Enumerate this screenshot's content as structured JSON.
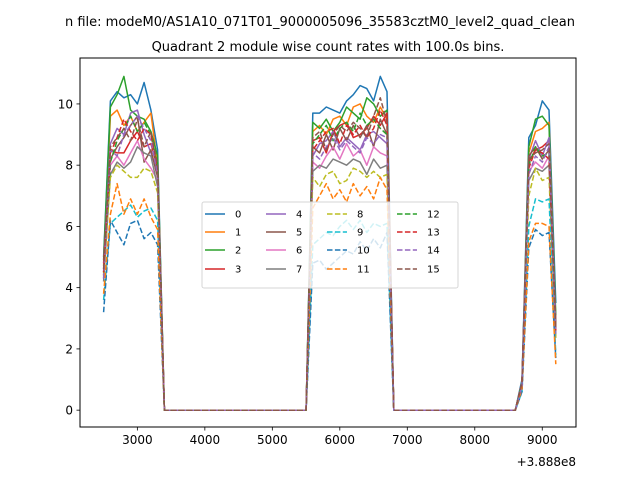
{
  "chart_data": {
    "type": "line",
    "suptitle": "n file: modeM0/AS1A10_071T01_9000005096_35583cztM0_level2_quad_clean",
    "title": "Quadrant 2 module wise count rates with 100.0s bins.",
    "xlabel": "",
    "ylabel": "",
    "x_offset_label": "+3.888e8",
    "xlim": [
      2150,
      9500
    ],
    "ylim": [
      -0.55,
      11.5
    ],
    "x_ticks": [
      3000,
      4000,
      5000,
      6000,
      7000,
      8000,
      9000
    ],
    "y_ticks": [
      0,
      2,
      4,
      6,
      8,
      10
    ],
    "grid": false,
    "legend_position": "center",
    "x": [
      2500,
      2600,
      2700,
      2800,
      2900,
      3000,
      3100,
      3200,
      3300,
      3400,
      5500,
      5600,
      5700,
      5800,
      5900,
      6000,
      6100,
      6200,
      6300,
      6400,
      6500,
      6600,
      6700,
      6800,
      8600,
      8700,
      8800,
      8900,
      9000,
      9100,
      9200
    ],
    "series": [
      {
        "name": "0",
        "color": "#1f77b4",
        "dash": "solid",
        "values": [
          5.0,
          10.1,
          10.4,
          10.2,
          10.3,
          10.0,
          10.7,
          9.8,
          8.5,
          0,
          0,
          9.7,
          9.7,
          9.9,
          9.8,
          9.7,
          10.1,
          10.3,
          10.6,
          10.5,
          10.1,
          10.9,
          10.4,
          0,
          0,
          1.0,
          8.9,
          9.3,
          10.1,
          9.8,
          3.5
        ]
      },
      {
        "name": "1",
        "color": "#ff7f0e",
        "dash": "solid",
        "values": [
          4.7,
          9.6,
          9.8,
          9.3,
          9.6,
          9.1,
          9.4,
          9.7,
          8.0,
          0,
          0,
          9.1,
          9.3,
          9.0,
          9.5,
          9.6,
          9.3,
          9.9,
          10.0,
          9.6,
          9.4,
          9.9,
          9.5,
          0,
          0,
          0.9,
          8.4,
          9.1,
          9.2,
          9.4,
          2.9
        ]
      },
      {
        "name": "2",
        "color": "#2ca02c",
        "dash": "solid",
        "values": [
          4.9,
          9.9,
          10.3,
          10.9,
          9.8,
          9.6,
          9.5,
          9.1,
          8.3,
          0,
          0,
          9.4,
          9.2,
          9.5,
          9.1,
          9.4,
          9.9,
          9.7,
          9.5,
          10.2,
          10.0,
          9.6,
          9.8,
          0,
          0,
          0.9,
          8.6,
          9.5,
          9.6,
          9.3,
          3.1
        ]
      },
      {
        "name": "3",
        "color": "#d62728",
        "dash": "solid",
        "values": [
          4.8,
          8.5,
          8.4,
          8.4,
          8.8,
          9.1,
          8.6,
          8.7,
          7.9,
          0,
          0,
          8.8,
          8.9,
          8.4,
          9.1,
          9.3,
          9.4,
          8.9,
          9.0,
          9.2,
          9.6,
          9.3,
          9.7,
          0,
          0,
          0.9,
          8.1,
          8.5,
          8.6,
          8.8,
          2.7
        ]
      },
      {
        "name": "4",
        "color": "#9467bd",
        "dash": "solid",
        "values": [
          4.6,
          8.7,
          9.2,
          9.0,
          9.7,
          9.8,
          9.0,
          8.4,
          7.8,
          0,
          0,
          8.3,
          8.7,
          8.8,
          9.1,
          8.6,
          8.9,
          8.7,
          8.5,
          9.0,
          9.1,
          8.9,
          8.7,
          0,
          0,
          0.9,
          8.2,
          8.8,
          8.3,
          8.9,
          2.8
        ]
      },
      {
        "name": "5",
        "color": "#8c564b",
        "dash": "solid",
        "values": [
          4.4,
          8.2,
          8.6,
          8.9,
          9.3,
          9.6,
          8.1,
          8.5,
          7.6,
          0,
          0,
          8.6,
          8.4,
          9.0,
          8.5,
          9.2,
          8.8,
          9.3,
          8.9,
          9.3,
          8.6,
          9.5,
          9.0,
          0,
          0,
          0.8,
          8.3,
          8.6,
          8.2,
          8.5,
          2.6
        ]
      },
      {
        "name": "6",
        "color": "#e377c2",
        "dash": "solid",
        "values": [
          4.3,
          8.0,
          8.3,
          8.0,
          8.4,
          8.8,
          8.2,
          7.9,
          7.5,
          0,
          0,
          8.1,
          7.9,
          8.3,
          8.6,
          8.2,
          8.7,
          8.3,
          8.5,
          8.0,
          8.6,
          8.4,
          8.3,
          0,
          0,
          0.8,
          7.8,
          8.1,
          7.9,
          8.3,
          2.5
        ]
      },
      {
        "name": "7",
        "color": "#7f7f7f",
        "dash": "solid",
        "values": [
          4.2,
          7.7,
          8.1,
          7.9,
          8.1,
          8.6,
          8.4,
          8.3,
          7.3,
          0,
          0,
          7.8,
          8.0,
          7.9,
          8.2,
          8.1,
          8.0,
          8.2,
          8.1,
          7.7,
          8.2,
          7.9,
          8.0,
          0,
          0,
          0.8,
          7.5,
          7.9,
          7.8,
          8.0,
          2.4
        ]
      },
      {
        "name": "8",
        "color": "#bcbd22",
        "dash": "dashed",
        "values": [
          4.4,
          7.6,
          8.0,
          7.8,
          7.6,
          7.6,
          7.9,
          7.8,
          7.1,
          0,
          0,
          7.6,
          7.3,
          7.7,
          7.8,
          7.4,
          7.5,
          7.9,
          7.8,
          7.6,
          7.8,
          7.6,
          7.7,
          0,
          0,
          0.8,
          7.0,
          7.9,
          7.5,
          7.6,
          2.3
        ]
      },
      {
        "name": "9",
        "color": "#17becf",
        "dash": "dashed",
        "values": [
          3.6,
          6.1,
          6.3,
          6.5,
          6.7,
          6.3,
          6.5,
          6.6,
          6.2,
          0,
          0,
          5.4,
          5.6,
          5.8,
          5.7,
          6.0,
          6.2,
          5.9,
          6.2,
          5.8,
          6.1,
          6.0,
          6.1,
          0,
          0,
          0.6,
          6.0,
          6.9,
          6.8,
          6.9,
          1.8
        ]
      },
      {
        "name": "10",
        "color": "#1f77b4",
        "dash": "dashed",
        "values": [
          3.2,
          6.2,
          5.8,
          5.4,
          6.1,
          6.2,
          5.6,
          5.8,
          5.4,
          0,
          0,
          4.8,
          4.9,
          4.6,
          4.8,
          5.0,
          5.2,
          5.1,
          5.5,
          5.2,
          5.6,
          5.3,
          5.8,
          0,
          0,
          0.6,
          5.3,
          5.9,
          5.7,
          5.8,
          1.7
        ]
      },
      {
        "name": "11",
        "color": "#ff7f0e",
        "dash": "dashed",
        "values": [
          3.8,
          6.4,
          7.4,
          6.4,
          6.9,
          6.4,
          6.9,
          6.3,
          5.9,
          0,
          0,
          6.6,
          7.0,
          7.4,
          6.9,
          7.2,
          6.8,
          7.4,
          7.0,
          7.3,
          6.9,
          7.6,
          7.2,
          0,
          0,
          0.7,
          5.5,
          6.1,
          6.1,
          6.0,
          1.5
        ]
      },
      {
        "name": "12",
        "color": "#2ca02c",
        "dash": "dashed",
        "values": [
          4.5,
          8.1,
          8.8,
          9.2,
          9.6,
          9.1,
          9.4,
          9.0,
          7.9,
          0,
          0,
          8.7,
          9.0,
          9.3,
          8.8,
          9.2,
          9.4,
          9.1,
          9.7,
          9.3,
          9.5,
          9.2,
          9.0,
          0,
          0,
          0.9,
          8.0,
          8.6,
          8.3,
          8.4,
          2.7
        ]
      },
      {
        "name": "13",
        "color": "#d62728",
        "dash": "dashed",
        "values": [
          4.5,
          8.4,
          8.9,
          9.5,
          9.1,
          8.8,
          9.2,
          9.0,
          7.8,
          0,
          0,
          8.5,
          8.8,
          9.1,
          9.2,
          8.7,
          9.3,
          9.0,
          9.3,
          8.9,
          9.2,
          9.8,
          9.3,
          0,
          0,
          0.9,
          7.9,
          8.5,
          8.4,
          8.2,
          2.6
        ]
      },
      {
        "name": "14",
        "color": "#9467bd",
        "dash": "dashed",
        "values": [
          4.3,
          8.5,
          8.3,
          9.0,
          9.3,
          9.6,
          9.2,
          8.8,
          7.7,
          0,
          0,
          8.4,
          8.2,
          8.6,
          8.9,
          8.5,
          8.8,
          8.6,
          8.4,
          8.9,
          8.7,
          9.0,
          8.9,
          0,
          0,
          0.8,
          7.7,
          8.3,
          8.1,
          8.6,
          2.5
        ]
      },
      {
        "name": "15",
        "color": "#8c564b",
        "dash": "dashed",
        "values": [
          4.6,
          8.6,
          8.9,
          9.2,
          8.8,
          9.5,
          8.6,
          9.1,
          8.0,
          0,
          0,
          8.9,
          9.1,
          8.5,
          9.0,
          9.3,
          9.1,
          9.4,
          9.2,
          8.9,
          9.6,
          10.2,
          9.4,
          0,
          0,
          0.9,
          8.2,
          8.4,
          8.5,
          8.7,
          2.7
        ]
      }
    ]
  }
}
